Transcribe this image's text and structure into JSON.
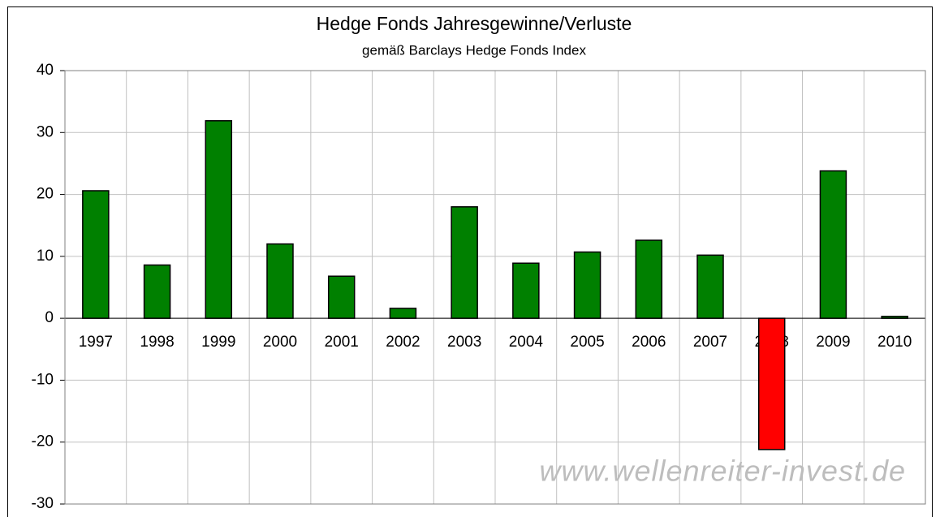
{
  "chart_data": {
    "type": "bar",
    "title": "Hedge Fonds Jahresgewinne/Verluste",
    "subtitle": "gemäß Barclays Hedge Fonds Index",
    "annotation": "www.wellenreiter-invest.de",
    "categories": [
      "1997",
      "1998",
      "1999",
      "2000",
      "2001",
      "2002",
      "2003",
      "2004",
      "2005",
      "2006",
      "2007",
      "2008",
      "2009",
      "2010"
    ],
    "values": [
      20.6,
      8.6,
      31.9,
      12.0,
      6.8,
      1.6,
      18.0,
      8.9,
      10.7,
      12.6,
      10.2,
      -21.2,
      23.8,
      0.3
    ],
    "colors": [
      "#008000",
      "#008000",
      "#008000",
      "#008000",
      "#008000",
      "#008000",
      "#008000",
      "#008000",
      "#008000",
      "#008000",
      "#008000",
      "#ff0000",
      "#008000",
      "#008000"
    ],
    "ylim": [
      -30,
      40
    ],
    "yticks": [
      -30,
      -20,
      -10,
      0,
      10,
      20,
      30,
      40
    ],
    "grid": true
  }
}
